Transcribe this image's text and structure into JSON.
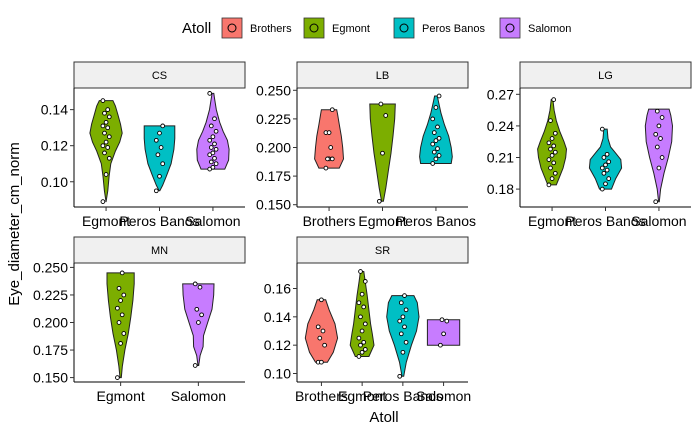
{
  "chart_data": {
    "type": "violin",
    "xlabel": "Atoll",
    "ylabel": "Eye_diameter_cm_norm",
    "legend": {
      "title": "Atoll",
      "position": "top",
      "entries": [
        {
          "name": "Brothers",
          "color": "#F8766D"
        },
        {
          "name": "Egmont",
          "color": "#7CAE00"
        },
        {
          "name": "Peros Banos",
          "color": "#00BFC4"
        },
        {
          "name": "Salomon",
          "color": "#C77CFF"
        }
      ]
    },
    "panels": [
      {
        "label": "CS",
        "ylim": [
          0.086,
          0.152
        ],
        "yticks": [
          0.1,
          0.12,
          0.14
        ],
        "ytick_labels": [
          "0.10",
          "0.12",
          "0.14"
        ],
        "groups": [
          {
            "name": "Egmont",
            "points": [
              0.089,
              0.104,
              0.113,
              0.116,
              0.119,
              0.12,
              0.122,
              0.125,
              0.127,
              0.13,
              0.131,
              0.133,
              0.136,
              0.138,
              0.14,
              0.145
            ],
            "violin": [
              [
                0.089,
                0.004
              ],
              [
                0.095,
                0.1
              ],
              [
                0.103,
                0.18
              ],
              [
                0.11,
                0.28
              ],
              [
                0.117,
                0.55
              ],
              [
                0.122,
                0.8
              ],
              [
                0.127,
                0.95
              ],
              [
                0.132,
                0.85
              ],
              [
                0.137,
                0.7
              ],
              [
                0.142,
                0.55
              ],
              [
                0.145,
                0.4
              ]
            ]
          },
          {
            "name": "Peros Banos",
            "points": [
              0.095,
              0.103,
              0.11,
              0.115,
              0.119,
              0.123,
              0.127,
              0.131
            ],
            "violin": [
              [
                0.095,
                0.02
              ],
              [
                0.098,
                0.18
              ],
              [
                0.103,
                0.4
              ],
              [
                0.11,
                0.68
              ],
              [
                0.118,
                0.85
              ],
              [
                0.124,
                0.9
              ],
              [
                0.131,
                0.9
              ]
            ]
          },
          {
            "name": "Salomon",
            "points": [
              0.107,
              0.108,
              0.11,
              0.111,
              0.113,
              0.115,
              0.116,
              0.118,
              0.119,
              0.121,
              0.123,
              0.125,
              0.128,
              0.131,
              0.135,
              0.149
            ],
            "violin": [
              [
                0.107,
                0.7
              ],
              [
                0.112,
                0.92
              ],
              [
                0.118,
                0.95
              ],
              [
                0.123,
                0.85
              ],
              [
                0.128,
                0.6
              ],
              [
                0.133,
                0.4
              ],
              [
                0.14,
                0.2
              ],
              [
                0.146,
                0.1
              ],
              [
                0.149,
                0.05
              ]
            ]
          }
        ]
      },
      {
        "label": "LB",
        "ylim": [
          0.148,
          0.252
        ],
        "yticks": [
          0.15,
          0.175,
          0.2,
          0.225,
          0.25
        ],
        "ytick_labels": [
          "0.150",
          "0.175",
          "0.200",
          "0.225",
          "0.250"
        ],
        "groups": [
          {
            "name": "Brothers",
            "points": [
              0.182,
              0.19,
              0.19,
              0.19,
              0.2,
              0.213,
              0.213,
              0.233
            ],
            "violin": [
              [
                0.182,
                0.6
              ],
              [
                0.19,
                0.85
              ],
              [
                0.2,
                0.8
              ],
              [
                0.21,
                0.72
              ],
              [
                0.22,
                0.6
              ],
              [
                0.229,
                0.5
              ],
              [
                0.233,
                0.45
              ]
            ]
          },
          {
            "name": "Egmont",
            "points": [
              0.153,
              0.195,
              0.228,
              0.238
            ],
            "violin": [
              [
                0.153,
                0.05
              ],
              [
                0.165,
                0.2
              ],
              [
                0.18,
                0.35
              ],
              [
                0.195,
                0.5
              ],
              [
                0.21,
                0.62
              ],
              [
                0.225,
                0.72
              ],
              [
                0.238,
                0.75
              ]
            ]
          },
          {
            "name": "Peros Banos",
            "points": [
              0.186,
              0.19,
              0.193,
              0.196,
              0.199,
              0.203,
              0.206,
              0.208,
              0.213,
              0.218,
              0.225,
              0.235,
              0.245
            ],
            "violin": [
              [
                0.186,
                0.9
              ],
              [
                0.192,
                0.96
              ],
              [
                0.2,
                0.9
              ],
              [
                0.21,
                0.75
              ],
              [
                0.22,
                0.5
              ],
              [
                0.23,
                0.3
              ],
              [
                0.24,
                0.15
              ],
              [
                0.245,
                0.08
              ]
            ]
          }
        ]
      },
      {
        "label": "LG",
        "ylim": [
          0.163,
          0.276
        ],
        "yticks": [
          0.18,
          0.21,
          0.24,
          0.27
        ],
        "ytick_labels": [
          "0.18",
          "0.21",
          "0.24",
          "0.27"
        ],
        "groups": [
          {
            "name": "Egmont",
            "points": [
              0.184,
              0.19,
              0.195,
              0.2,
              0.205,
              0.208,
              0.212,
              0.215,
              0.218,
              0.221,
              0.224,
              0.228,
              0.233,
              0.245,
              0.265
            ],
            "violin": [
              [
                0.184,
                0.25
              ],
              [
                0.192,
                0.45
              ],
              [
                0.2,
                0.65
              ],
              [
                0.21,
                0.8
              ],
              [
                0.218,
                0.85
              ],
              [
                0.225,
                0.7
              ],
              [
                0.235,
                0.45
              ],
              [
                0.245,
                0.25
              ],
              [
                0.255,
                0.12
              ],
              [
                0.265,
                0.05
              ]
            ]
          },
          {
            "name": "Peros Banos",
            "points": [
              0.18,
              0.185,
              0.19,
              0.195,
              0.198,
              0.2,
              0.203,
              0.206,
              0.21,
              0.213,
              0.237
            ],
            "violin": [
              [
                0.18,
                0.35
              ],
              [
                0.19,
                0.6
              ],
              [
                0.2,
                0.95
              ],
              [
                0.208,
                0.9
              ],
              [
                0.215,
                0.55
              ],
              [
                0.22,
                0.3
              ],
              [
                0.228,
                0.15
              ],
              [
                0.237,
                0.1
              ]
            ]
          },
          {
            "name": "Salomon",
            "points": [
              0.168,
              0.2,
              0.21,
              0.22,
              0.228,
              0.232,
              0.24,
              0.248,
              0.254
            ],
            "violin": [
              [
                0.168,
                0.02
              ],
              [
                0.18,
                0.1
              ],
              [
                0.195,
                0.3
              ],
              [
                0.21,
                0.55
              ],
              [
                0.225,
                0.75
              ],
              [
                0.24,
                0.8
              ],
              [
                0.25,
                0.7
              ],
              [
                0.256,
                0.6
              ]
            ]
          }
        ]
      },
      {
        "label": "MN",
        "ylim": [
          0.146,
          0.254
        ],
        "yticks": [
          0.15,
          0.175,
          0.2,
          0.225,
          0.25
        ],
        "ytick_labels": [
          "0.150",
          "0.175",
          "0.200",
          "0.225",
          "0.250"
        ],
        "groups": [
          {
            "name": "Egmont",
            "points": [
              0.15,
              0.181,
              0.19,
              0.2,
              0.207,
              0.213,
              0.22,
              0.225,
              0.231,
              0.245
            ],
            "violin": [
              [
                0.15,
                0.04
              ],
              [
                0.16,
                0.1
              ],
              [
                0.175,
                0.25
              ],
              [
                0.19,
                0.45
              ],
              [
                0.205,
                0.6
              ],
              [
                0.22,
                0.72
              ],
              [
                0.235,
                0.8
              ],
              [
                0.245,
                0.8
              ]
            ]
          },
          {
            "name": "Salomon",
            "points": [
              0.161,
              0.2,
              0.207,
              0.212,
              0.232,
              0.235
            ],
            "violin": [
              [
                0.161,
                0.02
              ],
              [
                0.17,
                0.1
              ],
              [
                0.178,
                0.28
              ],
              [
                0.188,
                0.3
              ],
              [
                0.2,
                0.55
              ],
              [
                0.212,
                0.8
              ],
              [
                0.225,
                0.9
              ],
              [
                0.235,
                0.92
              ]
            ]
          }
        ]
      },
      {
        "label": "SR",
        "ylim": [
          0.094,
          0.178
        ],
        "yticks": [
          0.1,
          0.12,
          0.14,
          0.16
        ],
        "ytick_labels": [
          "0.10",
          "0.12",
          "0.14",
          "0.16"
        ],
        "groups": [
          {
            "name": "Brothers",
            "points": [
              0.108,
              0.108,
              0.12,
              0.125,
              0.13,
              0.133,
              0.152
            ],
            "violin": [
              [
                0.108,
                0.35
              ],
              [
                0.115,
                0.7
              ],
              [
                0.125,
                0.95
              ],
              [
                0.135,
                0.8
              ],
              [
                0.145,
                0.45
              ],
              [
                0.152,
                0.25
              ]
            ]
          },
          {
            "name": "Egmont",
            "points": [
              0.112,
              0.115,
              0.117,
              0.12,
              0.122,
              0.125,
              0.13,
              0.135,
              0.14,
              0.147,
              0.15,
              0.156,
              0.165,
              0.172
            ],
            "violin": [
              [
                0.112,
                0.4
              ],
              [
                0.12,
                0.7
              ],
              [
                0.128,
                0.6
              ],
              [
                0.135,
                0.5
              ],
              [
                0.145,
                0.4
              ],
              [
                0.155,
                0.3
              ],
              [
                0.165,
                0.18
              ],
              [
                0.172,
                0.1
              ]
            ]
          },
          {
            "name": "Peros Banos",
            "points": [
              0.098,
              0.115,
              0.122,
              0.128,
              0.133,
              0.137,
              0.14,
              0.145,
              0.15,
              0.155
            ],
            "violin": [
              [
                0.098,
                0.05
              ],
              [
                0.108,
                0.2
              ],
              [
                0.12,
                0.5
              ],
              [
                0.13,
                0.8
              ],
              [
                0.14,
                0.95
              ],
              [
                0.15,
                0.85
              ],
              [
                0.155,
                0.65
              ]
            ]
          },
          {
            "name": "Salomon",
            "points": [
              0.12,
              0.128,
              0.137,
              0.138
            ],
            "violin": [
              [
                0.12,
                0.95
              ],
              [
                0.128,
                0.95
              ],
              [
                0.138,
                0.95
              ]
            ]
          }
        ]
      }
    ]
  }
}
